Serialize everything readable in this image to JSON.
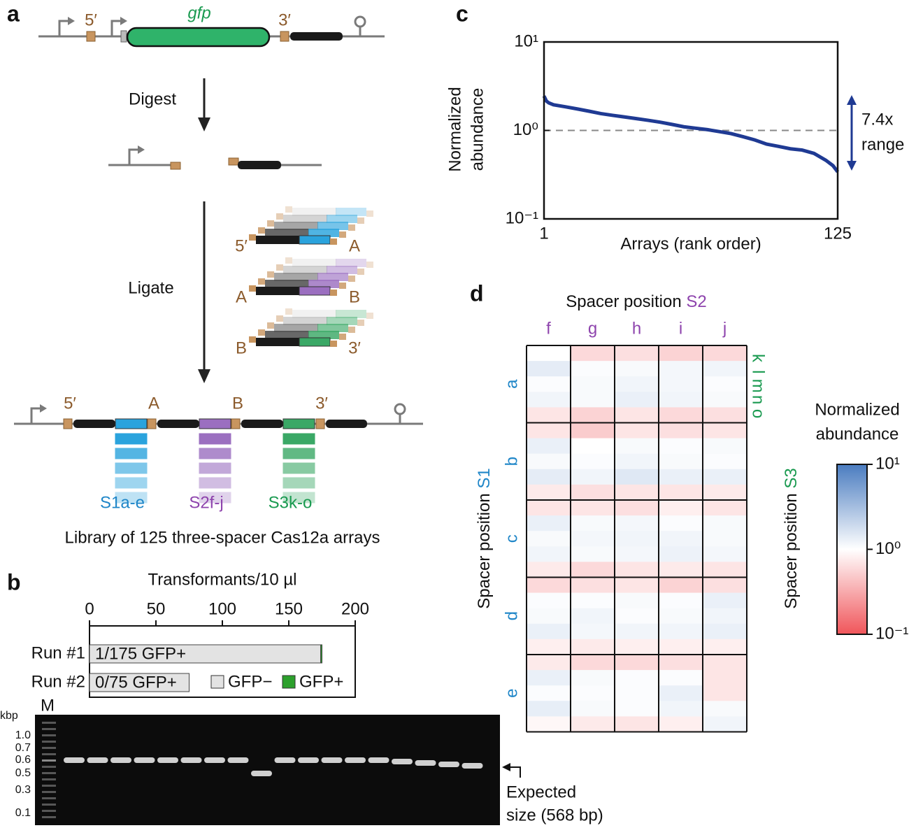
{
  "diagram": {
    "label": "a",
    "gene": "gfp",
    "five_prime": "5′",
    "three_prime": "3′",
    "step1": "Digest",
    "step2": "Ligate",
    "junction_a": "A",
    "junction_b": "B",
    "spacer_sets": [
      "S1a-e",
      "S2f-j",
      "S3k-o"
    ],
    "caption": "Library of 125 three-spacer Cas12a arrays"
  },
  "gel": {
    "lane_label": "M",
    "unit": "kbp",
    "ladder": [
      "1.0",
      "0.7",
      "0.6",
      "0.5",
      "0.3",
      "0.1"
    ],
    "note": [
      "Expected",
      "size (568 bp)"
    ]
  },
  "chart_data": [
    {
      "type": "line",
      "label": "c",
      "ylabel": [
        "Normalized",
        "abundance"
      ],
      "xlabel": "Arrays (rank order)",
      "log_y": true,
      "ylim": [
        0.1,
        10
      ],
      "yticks": [
        {
          "value": 10,
          "label": "10¹"
        },
        {
          "value": 1,
          "label": "10⁰"
        },
        {
          "value": 0.1,
          "label": "10⁻¹"
        }
      ],
      "xlim": [
        1,
        125
      ],
      "xticks": [
        1,
        125
      ],
      "reference_line": 1,
      "annotation": [
        "7.4x",
        "range"
      ],
      "series": [
        {
          "color": "#1f3a93",
          "x": [
            1,
            2,
            3,
            5,
            10,
            15,
            20,
            25,
            30,
            35,
            40,
            45,
            50,
            55,
            60,
            65,
            70,
            75,
            80,
            85,
            90,
            95,
            100,
            105,
            110,
            115,
            120,
            123,
            125
          ],
          "values": [
            2.45,
            2.15,
            2.05,
            1.95,
            1.85,
            1.75,
            1.65,
            1.55,
            1.48,
            1.42,
            1.36,
            1.3,
            1.24,
            1.17,
            1.1,
            1.06,
            1.02,
            0.97,
            0.92,
            0.85,
            0.78,
            0.7,
            0.66,
            0.62,
            0.6,
            0.55,
            0.46,
            0.4,
            0.34
          ]
        }
      ]
    },
    {
      "type": "bar",
      "orientation": "horizontal",
      "stacked": true,
      "label": "b",
      "title": "Transformants/10 µl",
      "categories": [
        "Run #1",
        "Run #2"
      ],
      "xlim": [
        0,
        200
      ],
      "xticks": [
        0,
        50,
        100,
        150,
        200
      ],
      "series": [
        {
          "name": "GFP−",
          "color": "#e3e3e3",
          "values": [
            174,
            75
          ]
        },
        {
          "name": "GFP+",
          "color": "#2ca02c",
          "values": [
            1,
            0
          ]
        }
      ],
      "annotations": [
        "1/175 GFP+",
        "0/75 GFP+"
      ]
    },
    {
      "type": "heatmap",
      "label": "d",
      "xlabel": "Spacer position",
      "xgroup": "S2",
      "ylabel": "Spacer position",
      "ygroup": "S1",
      "y2label": "Spacer position",
      "y2group": "S3",
      "columns": [
        "f",
        "g",
        "h",
        "i",
        "j"
      ],
      "row_groups": [
        "a",
        "b",
        "c",
        "d",
        "e"
      ],
      "rows": [
        "k",
        "l",
        "m",
        "n",
        "o"
      ],
      "log_scale": true,
      "values": [
        [
          1.0,
          0.6,
          0.65,
          0.55,
          0.6
        ],
        [
          1.4,
          1.05,
          1.1,
          1.15,
          1.2
        ],
        [
          1.05,
          1.1,
          1.2,
          1.15,
          1.05
        ],
        [
          1.2,
          1.1,
          1.3,
          1.2,
          1.1
        ],
        [
          0.7,
          0.55,
          0.7,
          0.6,
          0.65
        ],
        [
          0.7,
          0.5,
          0.7,
          0.65,
          0.7
        ],
        [
          1.3,
          1.0,
          1.1,
          1.05,
          1.1
        ],
        [
          1.1,
          1.05,
          1.2,
          1.1,
          1.05
        ],
        [
          1.4,
          1.2,
          1.5,
          1.3,
          1.3
        ],
        [
          0.75,
          0.65,
          0.7,
          0.7,
          0.75
        ],
        [
          0.7,
          0.7,
          0.65,
          0.8,
          0.7
        ],
        [
          1.3,
          1.1,
          1.15,
          1.05,
          1.1
        ],
        [
          1.1,
          1.15,
          1.2,
          1.2,
          1.1
        ],
        [
          1.2,
          1.1,
          1.15,
          1.25,
          1.15
        ],
        [
          0.75,
          0.6,
          0.7,
          0.75,
          0.7
        ],
        [
          0.6,
          0.65,
          0.7,
          0.55,
          0.65
        ],
        [
          1.05,
          1.05,
          1.1,
          1.05,
          1.3
        ],
        [
          1.1,
          1.2,
          1.05,
          1.1,
          1.2
        ],
        [
          1.3,
          1.15,
          1.2,
          1.2,
          1.3
        ],
        [
          0.8,
          0.75,
          0.8,
          0.8,
          0.8
        ],
        [
          0.75,
          0.6,
          0.6,
          0.65,
          0.7
        ],
        [
          1.3,
          1.1,
          1.05,
          1.05,
          0.7
        ],
        [
          1.05,
          1.05,
          1.05,
          1.3,
          0.7
        ],
        [
          1.35,
          1.1,
          1.05,
          1.2,
          1.1
        ],
        [
          0.9,
          0.75,
          0.7,
          0.8,
          1.2
        ]
      ],
      "colorbar": {
        "title": [
          "Normalized",
          "abundance"
        ],
        "lim": [
          0.1,
          10
        ],
        "ticks": [
          {
            "value": 10,
            "label": "10¹"
          },
          {
            "value": 1,
            "label": "10⁰"
          },
          {
            "value": 0.1,
            "label": "10⁻¹"
          }
        ],
        "colors": [
          "#f0555a",
          "#ffffff",
          "#4a7cc0"
        ]
      }
    }
  ]
}
